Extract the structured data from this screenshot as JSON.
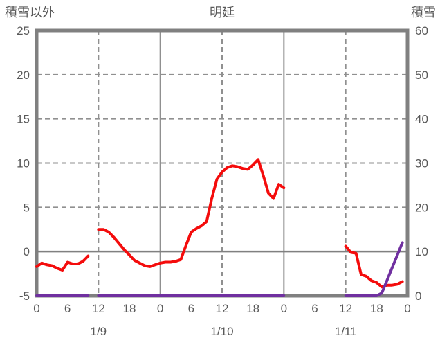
{
  "header": {
    "left_axis_title": "積雪以外",
    "chart_title": "明延",
    "right_axis_title": "積雪"
  },
  "colors": {
    "frame": "#808080",
    "grid": "#909090",
    "text": "#595959",
    "temperature": "#f40c0c",
    "snow": "#7030a0"
  },
  "chart_data": {
    "type": "line",
    "title": "明延",
    "x_axis": {
      "unit": "hour",
      "start_hour": 0,
      "end_hour": 72,
      "tick_step_hours": 6,
      "tick_labels": [
        "0",
        "6",
        "12",
        "18",
        "0",
        "6",
        "12",
        "18",
        "0",
        "6",
        "12",
        "18",
        "0"
      ],
      "day_labels": [
        {
          "text": "1/9",
          "hour": 12
        },
        {
          "text": "1/10",
          "hour": 36
        },
        {
          "text": "1/11",
          "hour": 60
        }
      ],
      "dashed_gridline_hours": [
        12,
        36,
        60
      ],
      "solid_gridline_hours": [
        24,
        48
      ]
    },
    "left_axis": {
      "title": "積雪以外",
      "min": -5,
      "max": 25,
      "tick_labels": [
        "25",
        "20",
        "15",
        "10",
        "5",
        "0",
        "-5"
      ],
      "dashed_gridlines": [
        20,
        15,
        10,
        5
      ],
      "solid_zero_line": 0
    },
    "right_axis": {
      "title": "積雪",
      "min": 0,
      "max": 60,
      "tick_labels": [
        "60",
        "50",
        "40",
        "30",
        "20",
        "10",
        "0"
      ]
    },
    "series": [
      {
        "name": "temperature",
        "axis": "left",
        "color_key": "temperature",
        "segments": [
          {
            "start_hour": 0,
            "step_hours": 1,
            "values": [
              -1.7,
              -1.3,
              -1.5,
              -1.6,
              -1.9,
              -2.1,
              -1.2,
              -1.4,
              -1.4,
              -1.1,
              -0.5
            ]
          },
          {
            "start_hour": 12,
            "step_hours": 1,
            "values": [
              2.5,
              2.5,
              2.2,
              1.6,
              0.9,
              0.2,
              -0.4,
              -1.0,
              -1.3,
              -1.6,
              -1.7,
              -1.5,
              -1.3,
              -1.2,
              -1.2,
              -1.1,
              -0.9,
              0.7,
              2.2,
              2.6,
              2.9,
              3.4,
              6.0,
              8.2,
              9.0,
              9.5,
              9.7,
              9.6,
              9.4,
              9.3,
              9.8,
              10.4,
              8.6,
              6.6,
              6.0,
              7.6,
              7.2
            ]
          },
          {
            "start_hour": 60,
            "step_hours": 1,
            "values": [
              0.6,
              -0.1,
              -0.2,
              -2.6,
              -2.8,
              -3.3,
              -3.5,
              -4.0,
              -3.8,
              -3.8,
              -3.7,
              -3.4
            ]
          }
        ]
      },
      {
        "name": "snow_depth",
        "axis": "right",
        "color_key": "snow",
        "segments": [
          {
            "start_hour": 0,
            "step_hours": 1,
            "values": [
              0,
              0,
              0,
              0,
              0,
              0,
              0,
              0,
              0,
              0,
              0
            ]
          },
          {
            "start_hour": 12,
            "step_hours": 1,
            "values": [
              0,
              0,
              0,
              0,
              0,
              0,
              0,
              0,
              0,
              0,
              0,
              0,
              0,
              0,
              0,
              0,
              0,
              0,
              0,
              0,
              0,
              0,
              0,
              0,
              0,
              0,
              0,
              0,
              0,
              0,
              0,
              0,
              0,
              0,
              0,
              0,
              0
            ]
          },
          {
            "start_hour": 60,
            "step_hours": 1,
            "values": [
              0,
              0,
              0,
              0,
              0,
              0,
              0,
              0.6,
              3.4,
              6.3,
              9.1,
              12
            ]
          }
        ]
      }
    ]
  }
}
